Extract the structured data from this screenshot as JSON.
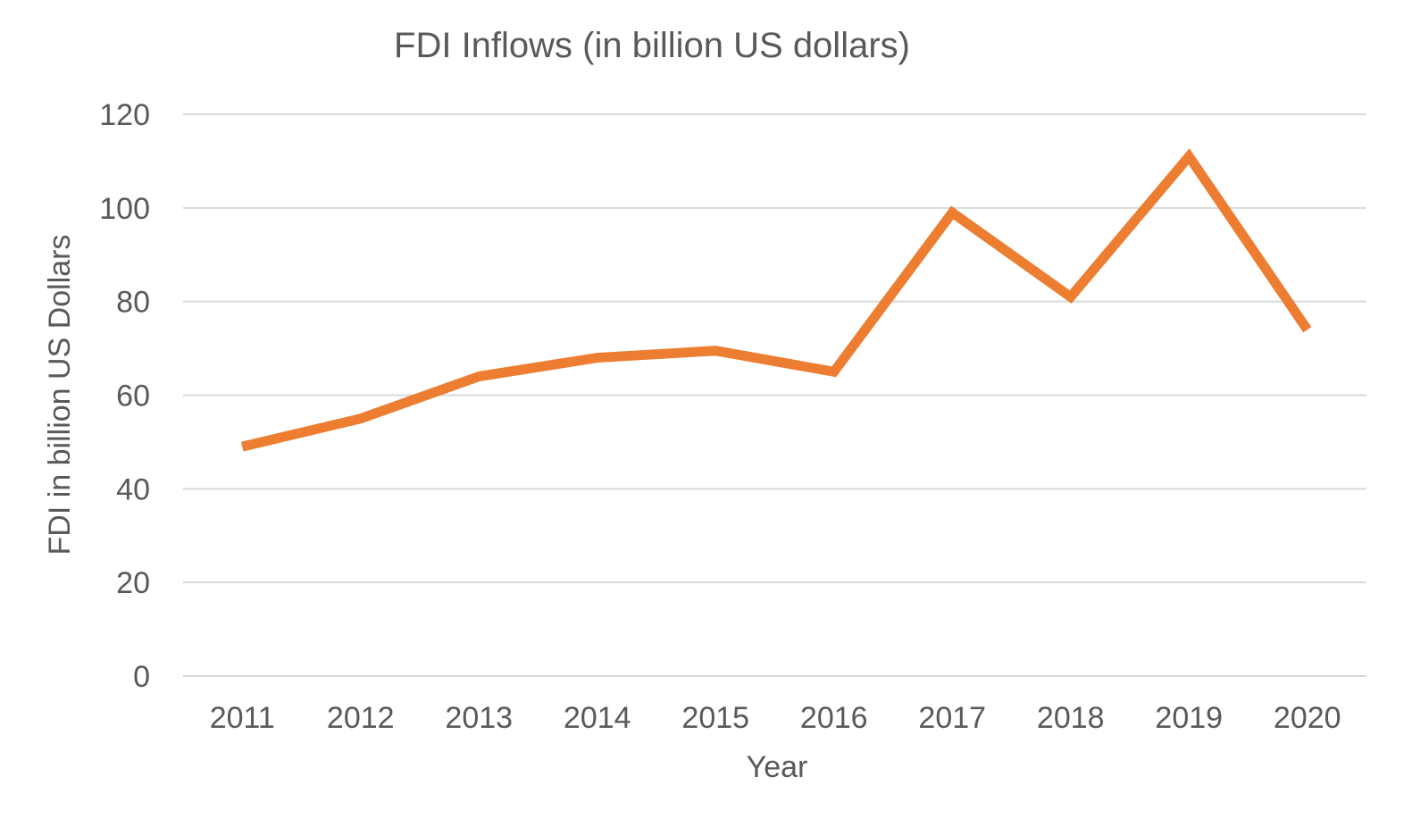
{
  "chart_data": {
    "type": "line",
    "title": "FDI Inflows (in billion US dollars)",
    "xlabel": "Year",
    "ylabel": "FDI  in billion US Dollars",
    "categories": [
      "2011",
      "2012",
      "2013",
      "2014",
      "2015",
      "2016",
      "2017",
      "2018",
      "2019",
      "2020"
    ],
    "series": [
      {
        "values": [
          49,
          55,
          64,
          68,
          69.5,
          65,
          99,
          81,
          111,
          74
        ],
        "color": "#ed7d31"
      }
    ],
    "ylim": [
      0,
      120
    ],
    "yticks": [
      "0",
      "20",
      "40",
      "60",
      "80",
      "100",
      "120"
    ],
    "grid": true,
    "legend": "none"
  }
}
